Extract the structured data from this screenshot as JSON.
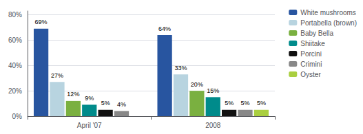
{
  "chart_data": {
    "type": "bar",
    "categories": [
      "April '07",
      "2008"
    ],
    "series": [
      {
        "name": "White mushrooms",
        "color": "#2855a0",
        "values": [
          69,
          64
        ],
        "value_labels": [
          "69%",
          "64%"
        ]
      },
      {
        "name": "Portabella (brown)",
        "color": "#b8d4e0",
        "values": [
          27,
          33
        ],
        "value_labels": [
          "27%",
          "33%"
        ]
      },
      {
        "name": "Baby Bella",
        "color": "#7ab040",
        "values": [
          12,
          20
        ],
        "value_labels": [
          "12%",
          "20%"
        ]
      },
      {
        "name": "Shiitake",
        "color": "#008b8b",
        "values": [
          9,
          15
        ],
        "value_labels": [
          "9%",
          "15%"
        ]
      },
      {
        "name": "Porcini",
        "color": "#111111",
        "values": [
          5,
          5
        ],
        "value_labels": [
          "5%",
          "5%"
        ]
      },
      {
        "name": "Crimini",
        "color": "#888888",
        "values": [
          4,
          5
        ],
        "value_labels": [
          "4%",
          "5%"
        ]
      },
      {
        "name": "Oyster",
        "color": "#aacf40",
        "values": [
          null,
          5
        ],
        "value_labels": [
          null,
          "5%"
        ]
      }
    ],
    "ylim": [
      0,
      83
    ],
    "yticks": [
      {
        "value": 0,
        "label": "0%"
      },
      {
        "value": 20,
        "label": "20%"
      },
      {
        "value": 40,
        "label": "40%"
      },
      {
        "value": 60,
        "label": "60%"
      },
      {
        "value": 80,
        "label": "80%"
      }
    ],
    "grid": true,
    "legend": "right",
    "data_labels": true
  }
}
